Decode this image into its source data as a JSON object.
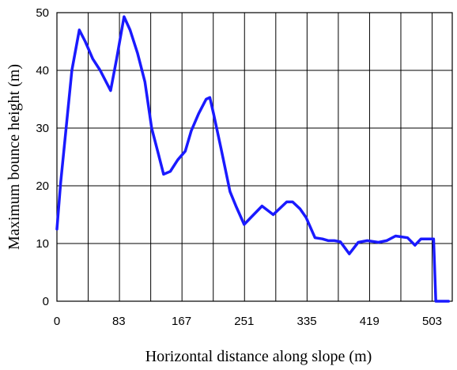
{
  "chart_data": {
    "type": "line",
    "xlabel": "Horizontal distance along slope (m)",
    "ylabel": "Maximum bounce height (m)",
    "xlim": [
      0,
      530
    ],
    "ylim": [
      0,
      50
    ],
    "x_ticks": [
      0,
      83,
      167,
      251,
      335,
      419,
      503
    ],
    "y_ticks": [
      0,
      10,
      20,
      30,
      40,
      50
    ],
    "grid": "vertical lines every ~41.9 m, horizontal lines every 10 m",
    "series": [
      {
        "color": "#1a1aff",
        "x": [
          0,
          5,
          20,
          30,
          38,
          48,
          58,
          72,
          80,
          90,
          98,
          108,
          118,
          127,
          135,
          143,
          152,
          162,
          172,
          180,
          190,
          200,
          205,
          210,
          220,
          232,
          240,
          251,
          260,
          275,
          290,
          308,
          316,
          326,
          334,
          346,
          356,
          364,
          372,
          380,
          392,
          404,
          416,
          431,
          442,
          454,
          470,
          480,
          488,
          496,
          505,
          508,
          515,
          525
        ],
        "y": [
          12.5,
          20.5,
          40.0,
          47.0,
          45.0,
          42.0,
          40.0,
          36.5,
          42.0,
          49.3,
          47.0,
          43.0,
          38.0,
          30.0,
          26.0,
          22.0,
          22.5,
          24.5,
          26.0,
          29.5,
          32.5,
          35.0,
          35.3,
          32.5,
          26.5,
          19.0,
          16.5,
          13.3,
          14.5,
          16.5,
          15.0,
          17.2,
          17.2,
          16.0,
          14.5,
          11.0,
          10.8,
          10.5,
          10.5,
          10.3,
          8.2,
          10.2,
          10.5,
          10.2,
          10.5,
          11.3,
          11.0,
          9.7,
          10.8,
          10.8,
          10.8,
          0.0,
          0.0,
          0.0
        ]
      }
    ]
  }
}
